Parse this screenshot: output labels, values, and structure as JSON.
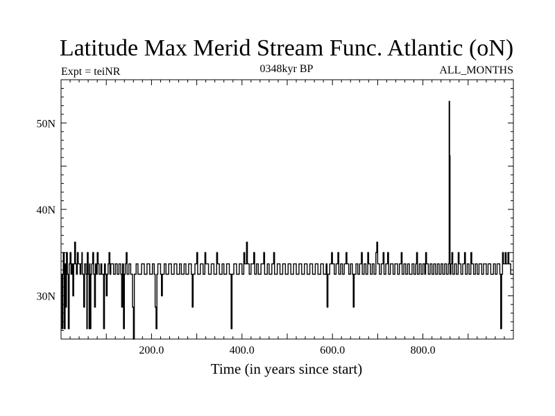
{
  "chart_data": {
    "type": "line",
    "title": "Latitude Max Merid Stream Func. Atlantic (oN)",
    "subtitle_left": "Expt = teiNR",
    "subtitle_center": "0348kyr BP",
    "subtitle_right": "ALL_MONTHS",
    "xlabel": "Time (in years since start)",
    "ylabel": "",
    "xlim": [
      0,
      1000
    ],
    "ylim": [
      25,
      55
    ],
    "x_ticks": [
      {
        "value": 200,
        "label": "200.0"
      },
      {
        "value": 400,
        "label": "400.0"
      },
      {
        "value": 600,
        "label": "600.0"
      },
      {
        "value": 800,
        "label": "800.0"
      }
    ],
    "y_ticks": [
      {
        "value": 30,
        "label": "30N"
      },
      {
        "value": 40,
        "label": "40N"
      },
      {
        "value": 50,
        "label": "50N"
      }
    ],
    "grid": false,
    "line_color": "#000000",
    "series": [
      {
        "levels": [
          32.5,
          33.7,
          35.0,
          36.2
        ],
        "baseline": 32.5,
        "events": [
          [
            2,
            26.2
          ],
          [
            4,
            32.5
          ],
          [
            5,
            35.0
          ],
          [
            7,
            26.2
          ],
          [
            9,
            33.7
          ],
          [
            11,
            28.7
          ],
          [
            12,
            35.0
          ],
          [
            14,
            32.5
          ],
          [
            16,
            26.2
          ],
          [
            18,
            33.7
          ],
          [
            20,
            35.0
          ],
          [
            22,
            32.5
          ],
          [
            24,
            33.7
          ],
          [
            26,
            30.0
          ],
          [
            28,
            33.7
          ],
          [
            30,
            36.2
          ],
          [
            32,
            33.7
          ],
          [
            34,
            32.5
          ],
          [
            36,
            35.0
          ],
          [
            38,
            33.7
          ],
          [
            42,
            32.5
          ],
          [
            44,
            33.7
          ],
          [
            46,
            35.0
          ],
          [
            47,
            32.5
          ],
          [
            50,
            28.7
          ],
          [
            52,
            33.7
          ],
          [
            55,
            32.5
          ],
          [
            57,
            26.2
          ],
          [
            58,
            35.0
          ],
          [
            60,
            32.5
          ],
          [
            62,
            26.2
          ],
          [
            63,
            33.7
          ],
          [
            64,
            26.2
          ],
          [
            66,
            32.5
          ],
          [
            68,
            33.7
          ],
          [
            70,
            35.0
          ],
          [
            72,
            32.5
          ],
          [
            74,
            28.7
          ],
          [
            76,
            33.7
          ],
          [
            78,
            32.5
          ],
          [
            80,
            35.0
          ],
          [
            82,
            33.7
          ],
          [
            84,
            32.5
          ],
          [
            88,
            33.7
          ],
          [
            90,
            32.5
          ],
          [
            94,
            26.2
          ],
          [
            96,
            33.7
          ],
          [
            98,
            32.5
          ],
          [
            100,
            30.0
          ],
          [
            102,
            32.5
          ],
          [
            104,
            33.7
          ],
          [
            106,
            35.0
          ],
          [
            108,
            32.5
          ],
          [
            110,
            33.7
          ],
          [
            116,
            32.5
          ],
          [
            120,
            33.7
          ],
          [
            124,
            32.5
          ],
          [
            128,
            33.7
          ],
          [
            132,
            32.5
          ],
          [
            134,
            28.7
          ],
          [
            136,
            33.7
          ],
          [
            138,
            26.2
          ],
          [
            140,
            32.5
          ],
          [
            142,
            33.7
          ],
          [
            144,
            35.0
          ],
          [
            146,
            32.5
          ],
          [
            150,
            33.7
          ],
          [
            154,
            32.5
          ],
          [
            158,
            28.7
          ],
          [
            160,
            25.0
          ],
          [
            162,
            32.5
          ],
          [
            166,
            33.7
          ],
          [
            170,
            32.5
          ],
          [
            178,
            33.7
          ],
          [
            184,
            32.5
          ],
          [
            190,
            33.7
          ],
          [
            196,
            32.5
          ],
          [
            202,
            33.7
          ],
          [
            206,
            32.5
          ],
          [
            208,
            28.7
          ],
          [
            210,
            26.2
          ],
          [
            212,
            32.5
          ],
          [
            214,
            33.7
          ],
          [
            220,
            32.5
          ],
          [
            222,
            30.0
          ],
          [
            224,
            32.5
          ],
          [
            228,
            33.7
          ],
          [
            232,
            32.5
          ],
          [
            238,
            33.7
          ],
          [
            244,
            32.5
          ],
          [
            250,
            33.7
          ],
          [
            256,
            32.5
          ],
          [
            262,
            33.7
          ],
          [
            266,
            32.5
          ],
          [
            272,
            33.7
          ],
          [
            276,
            32.5
          ],
          [
            282,
            33.7
          ],
          [
            288,
            32.5
          ],
          [
            290,
            28.7
          ],
          [
            292,
            32.5
          ],
          [
            296,
            33.7
          ],
          [
            300,
            35.0
          ],
          [
            302,
            32.5
          ],
          [
            308,
            33.7
          ],
          [
            314,
            32.5
          ],
          [
            318,
            35.0
          ],
          [
            320,
            33.7
          ],
          [
            326,
            32.5
          ],
          [
            332,
            33.7
          ],
          [
            338,
            32.5
          ],
          [
            344,
            35.0
          ],
          [
            346,
            33.7
          ],
          [
            350,
            32.5
          ],
          [
            356,
            33.7
          ],
          [
            360,
            32.5
          ],
          [
            366,
            33.7
          ],
          [
            372,
            32.5
          ],
          [
            376,
            26.2
          ],
          [
            378,
            32.5
          ],
          [
            382,
            33.7
          ],
          [
            388,
            32.5
          ],
          [
            394,
            33.7
          ],
          [
            400,
            32.5
          ],
          [
            404,
            35.0
          ],
          [
            406,
            33.7
          ],
          [
            410,
            36.2
          ],
          [
            412,
            33.7
          ],
          [
            416,
            32.5
          ],
          [
            420,
            33.7
          ],
          [
            426,
            35.0
          ],
          [
            428,
            32.5
          ],
          [
            432,
            33.7
          ],
          [
            436,
            32.5
          ],
          [
            442,
            33.7
          ],
          [
            448,
            35.0
          ],
          [
            450,
            32.5
          ],
          [
            456,
            33.7
          ],
          [
            460,
            32.5
          ],
          [
            466,
            33.7
          ],
          [
            470,
            35.0
          ],
          [
            472,
            32.5
          ],
          [
            478,
            33.7
          ],
          [
            484,
            32.5
          ],
          [
            490,
            33.7
          ],
          [
            496,
            32.5
          ],
          [
            502,
            33.7
          ],
          [
            508,
            32.5
          ],
          [
            514,
            33.7
          ],
          [
            520,
            32.5
          ],
          [
            526,
            33.7
          ],
          [
            532,
            32.5
          ],
          [
            538,
            33.7
          ],
          [
            544,
            32.5
          ],
          [
            550,
            33.7
          ],
          [
            556,
            32.5
          ],
          [
            562,
            33.7
          ],
          [
            568,
            32.5
          ],
          [
            574,
            33.7
          ],
          [
            580,
            32.5
          ],
          [
            586,
            33.7
          ],
          [
            588,
            28.7
          ],
          [
            590,
            32.5
          ],
          [
            594,
            33.7
          ],
          [
            598,
            35.0
          ],
          [
            600,
            33.7
          ],
          [
            604,
            32.5
          ],
          [
            608,
            33.7
          ],
          [
            612,
            35.0
          ],
          [
            614,
            32.5
          ],
          [
            618,
            33.7
          ],
          [
            622,
            32.5
          ],
          [
            626,
            33.7
          ],
          [
            630,
            35.0
          ],
          [
            632,
            33.7
          ],
          [
            636,
            32.5
          ],
          [
            640,
            33.7
          ],
          [
            644,
            32.5
          ],
          [
            646,
            28.7
          ],
          [
            648,
            32.5
          ],
          [
            652,
            33.7
          ],
          [
            656,
            32.5
          ],
          [
            660,
            33.7
          ],
          [
            664,
            35.0
          ],
          [
            666,
            32.5
          ],
          [
            670,
            33.7
          ],
          [
            674,
            32.5
          ],
          [
            678,
            35.0
          ],
          [
            680,
            33.7
          ],
          [
            684,
            32.5
          ],
          [
            688,
            33.7
          ],
          [
            692,
            32.5
          ],
          [
            696,
            35.0
          ],
          [
            698,
            36.2
          ],
          [
            700,
            33.7
          ],
          [
            704,
            32.5
          ],
          [
            708,
            33.7
          ],
          [
            712,
            35.0
          ],
          [
            714,
            32.5
          ],
          [
            718,
            33.7
          ],
          [
            722,
            35.0
          ],
          [
            724,
            32.5
          ],
          [
            728,
            33.7
          ],
          [
            734,
            32.5
          ],
          [
            738,
            33.7
          ],
          [
            744,
            32.5
          ],
          [
            748,
            33.7
          ],
          [
            752,
            35.0
          ],
          [
            754,
            32.5
          ],
          [
            758,
            33.7
          ],
          [
            762,
            32.5
          ],
          [
            766,
            33.7
          ],
          [
            770,
            32.5
          ],
          [
            776,
            33.7
          ],
          [
            780,
            32.5
          ],
          [
            784,
            33.7
          ],
          [
            786,
            35.0
          ],
          [
            788,
            32.5
          ],
          [
            792,
            33.7
          ],
          [
            796,
            32.5
          ],
          [
            800,
            33.7
          ],
          [
            804,
            32.5
          ],
          [
            806,
            35.0
          ],
          [
            808,
            33.7
          ],
          [
            812,
            32.5
          ],
          [
            816,
            33.7
          ],
          [
            820,
            32.5
          ],
          [
            824,
            33.7
          ],
          [
            828,
            32.5
          ],
          [
            832,
            33.7
          ],
          [
            836,
            32.5
          ],
          [
            840,
            33.7
          ],
          [
            844,
            32.5
          ],
          [
            848,
            33.7
          ],
          [
            852,
            32.5
          ],
          [
            856,
            33.7
          ],
          [
            858,
            52.5
          ],
          [
            859,
            46.2
          ],
          [
            860,
            32.5
          ],
          [
            862,
            33.7
          ],
          [
            864,
            35.0
          ],
          [
            866,
            32.5
          ],
          [
            870,
            33.7
          ],
          [
            874,
            32.5
          ],
          [
            878,
            35.0
          ],
          [
            880,
            33.7
          ],
          [
            884,
            32.5
          ],
          [
            888,
            33.7
          ],
          [
            892,
            35.0
          ],
          [
            894,
            32.5
          ],
          [
            898,
            33.7
          ],
          [
            902,
            32.5
          ],
          [
            906,
            35.0
          ],
          [
            908,
            33.7
          ],
          [
            912,
            32.5
          ],
          [
            916,
            33.7
          ],
          [
            920,
            32.5
          ],
          [
            924,
            33.7
          ],
          [
            930,
            32.5
          ],
          [
            934,
            33.7
          ],
          [
            940,
            32.5
          ],
          [
            944,
            33.7
          ],
          [
            950,
            32.5
          ],
          [
            956,
            33.7
          ],
          [
            960,
            32.5
          ],
          [
            964,
            33.7
          ],
          [
            970,
            32.5
          ],
          [
            972,
            26.2
          ],
          [
            974,
            32.5
          ],
          [
            976,
            35.0
          ],
          [
            978,
            33.7
          ],
          [
            982,
            35.0
          ],
          [
            984,
            33.7
          ],
          [
            988,
            35.0
          ],
          [
            990,
            33.7
          ],
          [
            994,
            32.5
          ],
          [
            998,
            32.5
          ],
          [
            1000,
            32.5
          ]
        ]
      }
    ]
  }
}
